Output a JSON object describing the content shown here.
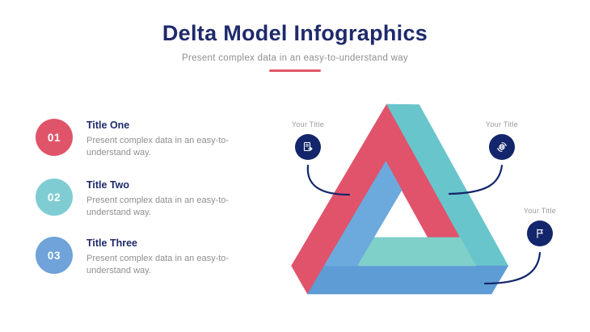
{
  "slide": {
    "title": "Delta Model Infographics",
    "subtitle": "Present complex data in an easy-to-understand way"
  },
  "items": [
    {
      "number": "01",
      "title": "Title One",
      "description": "Present complex data in an easy-to-understand way.",
      "circle_color": "#E0546A"
    },
    {
      "number": "02",
      "title": "Title Two",
      "description": "Present complex data in an easy-to-understand way.",
      "circle_color": "#7FCDD2"
    },
    {
      "number": "03",
      "title": "Title Three",
      "description": "Present complex data in an easy-to-understand way.",
      "circle_color": "#6FA3D9"
    }
  ],
  "callouts": [
    {
      "label": "Your Title",
      "icon": "document-icon"
    },
    {
      "label": "Your Title",
      "icon": "sync-globe-icon"
    },
    {
      "label": "Your Title",
      "icon": "flag-icon"
    }
  ],
  "colors": {
    "title_navy": "#1F2A6B",
    "accent_red": "#E2566B",
    "text_gray": "#8F8F8F",
    "label_gray": "#9A9A9A",
    "penrose_red": "#E0536A",
    "penrose_teal": "#68C5CC",
    "penrose_teal_light": "#7ED0C9",
    "penrose_blue": "#5E9CD6",
    "penrose_blue_light": "#6CA9DC",
    "connector_navy": "#14266B"
  }
}
